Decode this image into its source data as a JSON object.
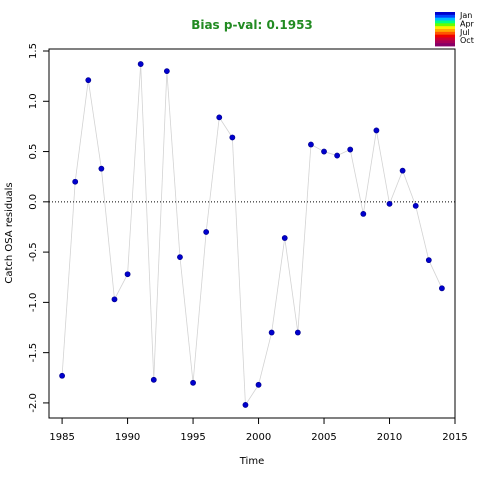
{
  "chart_data": {
    "type": "scatter",
    "title": "Bias p-val: 0.1953",
    "title_color": "#228b22",
    "xlabel": "Time",
    "ylabel": "Catch OSA residuals",
    "xlim": [
      1984,
      2015
    ],
    "ylim": [
      -2.15,
      1.52
    ],
    "xticks": [
      "1985",
      "1990",
      "1995",
      "2000",
      "2005",
      "2010",
      "2015"
    ],
    "yticks": [
      "-2.0",
      "-1.5",
      "-1.0",
      "-0.5",
      "0.0",
      "0.5",
      "1.0",
      "1.5"
    ],
    "reference_line_y": 0,
    "point_color": "#0000cd",
    "line_color": "#d3d3d3",
    "x": [
      1985,
      1986,
      1987,
      1988,
      1989,
      1990,
      1991,
      1992,
      1993,
      1994,
      1995,
      1996,
      1997,
      1998,
      1999,
      2000,
      2001,
      2002,
      2003,
      2004,
      2005,
      2006,
      2007,
      2008,
      2009,
      2010,
      2011,
      2012,
      2013,
      2014
    ],
    "y": [
      -1.73,
      0.2,
      1.21,
      0.33,
      -0.97,
      -0.72,
      1.37,
      -1.77,
      1.3,
      -0.55,
      -1.8,
      -0.3,
      0.84,
      0.64,
      -2.02,
      -1.82,
      -1.3,
      -0.36,
      -1.3,
      0.57,
      0.5,
      0.46,
      0.52,
      -0.12,
      0.71,
      -0.02,
      0.31,
      -0.04,
      -0.58,
      -0.86
    ],
    "legend": {
      "placement": "top-right",
      "entries": [
        "Jan",
        "Apr",
        "Jul",
        "Oct"
      ],
      "colors": [
        "#0000cc",
        "#0044ff",
        "#00bbff",
        "#00ff88",
        "#66ff00",
        "#ffee00",
        "#ffaa00",
        "#ff5500",
        "#ee0000",
        "#cc0033",
        "#aa0055",
        "#880066"
      ]
    }
  }
}
